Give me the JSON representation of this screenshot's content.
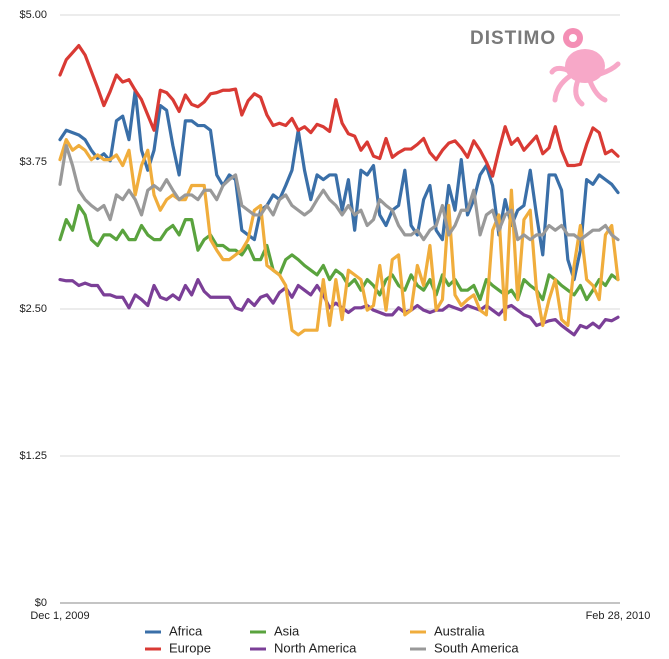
{
  "logo": "DISTIMO",
  "chart_data": {
    "type": "line",
    "categories": [
      "Dec 1, 2009",
      null,
      null,
      null,
      null,
      null,
      null,
      null,
      null,
      null,
      null,
      null,
      null,
      null,
      null,
      null,
      null,
      null,
      null,
      null,
      null,
      null,
      null,
      null,
      null,
      null,
      null,
      null,
      null,
      null,
      null,
      null,
      null,
      null,
      null,
      null,
      null,
      null,
      null,
      null,
      null,
      null,
      null,
      null,
      null,
      null,
      null,
      null,
      null,
      null,
      null,
      null,
      null,
      null,
      null,
      null,
      null,
      null,
      null,
      null,
      null,
      null,
      null,
      null,
      null,
      null,
      null,
      null,
      null,
      null,
      null,
      null,
      null,
      null,
      null,
      null,
      null,
      null,
      null,
      null,
      null,
      null,
      null,
      null,
      null,
      null,
      null,
      null,
      null,
      "Feb 28, 2010"
    ],
    "ylim": [
      0,
      5
    ],
    "yticks": [
      {
        "value": 0,
        "label": "$0"
      },
      {
        "value": 1.25,
        "label": "$1.25"
      },
      {
        "value": 2.5,
        "label": "$2.50"
      },
      {
        "value": 3.75,
        "label": "$3.75"
      },
      {
        "value": 5,
        "label": "$5.00"
      }
    ],
    "grid": true,
    "legend": "bottom",
    "series": [
      {
        "name": "Africa",
        "color": "#3a6fa8",
        "values": [
          3.94,
          4.02,
          4.0,
          3.98,
          3.94,
          3.85,
          3.78,
          3.82,
          3.76,
          4.1,
          4.14,
          3.94,
          4.36,
          3.85,
          3.68,
          3.85,
          4.23,
          4.19,
          3.89,
          3.64,
          4.1,
          4.1,
          4.06,
          4.06,
          4.02,
          3.64,
          3.55,
          3.64,
          3.6,
          3.17,
          3.13,
          3.09,
          3.34,
          3.38,
          3.47,
          3.43,
          3.55,
          3.68,
          4.02,
          3.68,
          3.43,
          3.64,
          3.6,
          3.64,
          3.64,
          3.34,
          3.6,
          3.17,
          3.68,
          3.64,
          3.72,
          3.3,
          3.21,
          3.34,
          3.38,
          3.68,
          3.21,
          3.13,
          3.43,
          3.55,
          3.17,
          3.09,
          3.55,
          3.34,
          3.77,
          3.3,
          3.43,
          3.64,
          3.72,
          3.55,
          3.13,
          3.43,
          3.21,
          3.34,
          3.38,
          3.68,
          3.3,
          2.96,
          3.64,
          3.64,
          3.51,
          2.92,
          2.75,
          3.0,
          3.6,
          3.56,
          3.64,
          3.6,
          3.56,
          3.49
        ]
      },
      {
        "name": "Europe",
        "color": "#d93a34",
        "values": [
          4.49,
          4.62,
          4.68,
          4.74,
          4.66,
          4.52,
          4.38,
          4.23,
          4.35,
          4.49,
          4.43,
          4.45,
          4.36,
          4.28,
          4.15,
          4.02,
          4.36,
          4.34,
          4.28,
          4.18,
          4.32,
          4.24,
          4.22,
          4.26,
          4.33,
          4.34,
          4.36,
          4.36,
          4.37,
          4.15,
          4.27,
          4.33,
          4.3,
          4.15,
          4.06,
          4.08,
          4.06,
          4.12,
          4.02,
          4.05,
          4.0,
          4.07,
          4.05,
          4.01,
          4.28,
          4.08,
          3.99,
          3.97,
          3.85,
          3.92,
          3.8,
          3.78,
          3.95,
          3.79,
          3.83,
          3.86,
          3.86,
          3.9,
          3.95,
          3.83,
          3.77,
          3.85,
          3.91,
          3.93,
          3.87,
          3.79,
          3.93,
          3.85,
          3.75,
          3.63,
          3.85,
          4.05,
          3.9,
          3.95,
          3.85,
          3.91,
          3.97,
          3.82,
          3.87,
          4.05,
          3.85,
          3.72,
          3.72,
          3.73,
          3.9,
          4.04,
          4.0,
          3.82,
          3.85,
          3.8
        ]
      },
      {
        "name": "Asia",
        "color": "#5aa33e",
        "values": [
          3.09,
          3.26,
          3.17,
          3.38,
          3.3,
          3.09,
          3.04,
          3.13,
          3.13,
          3.09,
          3.17,
          3.09,
          3.09,
          3.21,
          3.13,
          3.09,
          3.09,
          3.17,
          3.21,
          3.13,
          3.26,
          3.26,
          3.0,
          3.09,
          3.13,
          3.04,
          3.04,
          3.0,
          3.0,
          2.96,
          3.04,
          2.92,
          2.92,
          3.04,
          2.83,
          2.79,
          2.92,
          2.96,
          2.92,
          2.87,
          2.83,
          2.79,
          2.87,
          2.75,
          2.83,
          2.79,
          2.7,
          2.75,
          2.66,
          2.75,
          2.7,
          2.62,
          2.75,
          2.79,
          2.7,
          2.66,
          2.79,
          2.7,
          2.66,
          2.75,
          2.62,
          2.79,
          2.7,
          2.75,
          2.66,
          2.66,
          2.7,
          2.58,
          2.75,
          2.7,
          2.66,
          2.62,
          2.66,
          2.58,
          2.75,
          2.7,
          2.66,
          2.58,
          2.79,
          2.75,
          2.7,
          2.66,
          2.62,
          2.7,
          2.58,
          2.66,
          2.75,
          2.7,
          2.79,
          2.75
        ]
      },
      {
        "name": "North America",
        "color": "#7b3f97",
        "values": [
          2.75,
          2.74,
          2.74,
          2.7,
          2.72,
          2.7,
          2.7,
          2.62,
          2.62,
          2.6,
          2.6,
          2.51,
          2.62,
          2.58,
          2.53,
          2.7,
          2.6,
          2.58,
          2.62,
          2.58,
          2.7,
          2.62,
          2.75,
          2.65,
          2.6,
          2.6,
          2.6,
          2.6,
          2.51,
          2.49,
          2.58,
          2.53,
          2.6,
          2.62,
          2.55,
          2.64,
          2.68,
          2.6,
          2.7,
          2.66,
          2.62,
          2.7,
          2.62,
          2.51,
          2.55,
          2.51,
          2.47,
          2.51,
          2.51,
          2.53,
          2.49,
          2.47,
          2.45,
          2.45,
          2.51,
          2.47,
          2.49,
          2.53,
          2.49,
          2.47,
          2.49,
          2.49,
          2.53,
          2.51,
          2.49,
          2.53,
          2.51,
          2.49,
          2.53,
          2.49,
          2.45,
          2.51,
          2.53,
          2.49,
          2.45,
          2.43,
          2.36,
          2.38,
          2.4,
          2.41,
          2.36,
          2.32,
          2.28,
          2.36,
          2.34,
          2.38,
          2.34,
          2.41,
          2.4,
          2.43
        ]
      },
      {
        "name": "Australia",
        "color": "#f0ad3c",
        "values": [
          3.77,
          3.94,
          3.85,
          3.89,
          3.85,
          3.77,
          3.81,
          3.77,
          3.77,
          3.81,
          3.72,
          3.85,
          3.47,
          3.72,
          3.85,
          3.47,
          3.34,
          3.43,
          3.47,
          3.43,
          3.43,
          3.55,
          3.55,
          3.55,
          3.09,
          3.0,
          2.92,
          2.92,
          2.96,
          3.0,
          3.09,
          3.34,
          3.38,
          2.87,
          2.83,
          2.79,
          2.7,
          2.32,
          2.28,
          2.32,
          2.32,
          2.32,
          2.75,
          2.36,
          2.75,
          2.41,
          2.83,
          2.79,
          2.75,
          2.49,
          2.53,
          2.87,
          2.49,
          2.92,
          2.96,
          2.45,
          2.49,
          2.87,
          2.7,
          3.04,
          2.49,
          2.58,
          3.38,
          2.62,
          2.53,
          2.58,
          2.62,
          2.49,
          2.45,
          3.17,
          3.3,
          2.41,
          3.51,
          2.58,
          3.26,
          3.34,
          2.66,
          2.36,
          2.58,
          2.75,
          2.41,
          2.36,
          2.87,
          3.21,
          2.75,
          2.7,
          2.58,
          3.13,
          3.21,
          2.75
        ]
      },
      {
        "name": "South America",
        "color": "#999999",
        "values": [
          3.56,
          3.89,
          3.72,
          3.51,
          3.43,
          3.38,
          3.34,
          3.38,
          3.26,
          3.47,
          3.43,
          3.51,
          3.43,
          3.3,
          3.51,
          3.55,
          3.51,
          3.6,
          3.51,
          3.43,
          3.47,
          3.47,
          3.43,
          3.51,
          3.51,
          3.43,
          3.55,
          3.6,
          3.64,
          3.38,
          3.34,
          3.3,
          3.3,
          3.38,
          3.3,
          3.43,
          3.47,
          3.38,
          3.34,
          3.3,
          3.34,
          3.43,
          3.51,
          3.43,
          3.38,
          3.3,
          3.38,
          3.3,
          3.34,
          3.21,
          3.26,
          3.43,
          3.38,
          3.34,
          3.21,
          3.13,
          3.13,
          3.17,
          3.09,
          3.17,
          3.21,
          3.38,
          3.13,
          3.21,
          3.34,
          3.34,
          3.51,
          3.13,
          3.3,
          3.34,
          3.17,
          3.3,
          3.34,
          3.09,
          3.13,
          3.09,
          3.13,
          3.13,
          3.21,
          3.17,
          3.21,
          3.13,
          3.13,
          3.09,
          3.13,
          3.17,
          3.17,
          3.21,
          3.13,
          3.09
        ]
      }
    ]
  }
}
